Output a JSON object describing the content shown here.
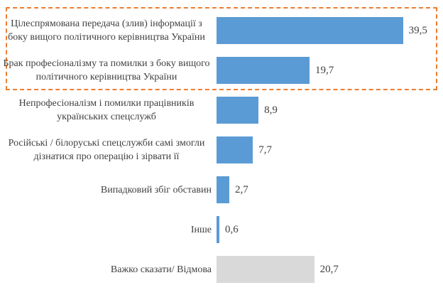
{
  "chart_data": {
    "type": "bar",
    "orientation": "horizontal",
    "title": "",
    "xlabel": "",
    "ylabel": "",
    "grid": false,
    "legend": "none",
    "xlim": [
      0,
      45
    ],
    "categories": [
      "Цілеспрямована передача (злив) інформації з боку вищого політичного керівництва України",
      "Брак професіоналізму та помилки з боку вищого політичного керівництва України",
      "Непрофесіоналізм і помилки працівників українських спецслужб",
      "Російські / білоруські спецслужби самі змогли дізнатися про операцію і зірвати її",
      "Випадковий збіг обставин",
      "Інше",
      "Важко сказати/ Відмова"
    ],
    "values": [
      39.5,
      19.7,
      8.9,
      7.7,
      2.7,
      0.6,
      20.7
    ],
    "value_labels": [
      "39,5",
      "19,7",
      "8,9",
      "7,7",
      "2,7",
      "0,6",
      "20,7"
    ],
    "bar_colors": [
      "#5B9BD5",
      "#5B9BD5",
      "#5B9BD5",
      "#5B9BD5",
      "#5B9BD5",
      "#5B9BD5",
      "#D9D9D9"
    ],
    "annotations": {
      "highlight_box": {
        "shape": "dashed-rectangle",
        "color": "#ED7D31",
        "enclosed_rows": [
          0,
          1
        ]
      }
    },
    "colors": {
      "bar_primary": "#5B9BD5",
      "bar_neutral": "#D9D9D9",
      "highlight_border": "#ED7D31",
      "text": "#404040",
      "background": "#FFFFFF"
    }
  }
}
